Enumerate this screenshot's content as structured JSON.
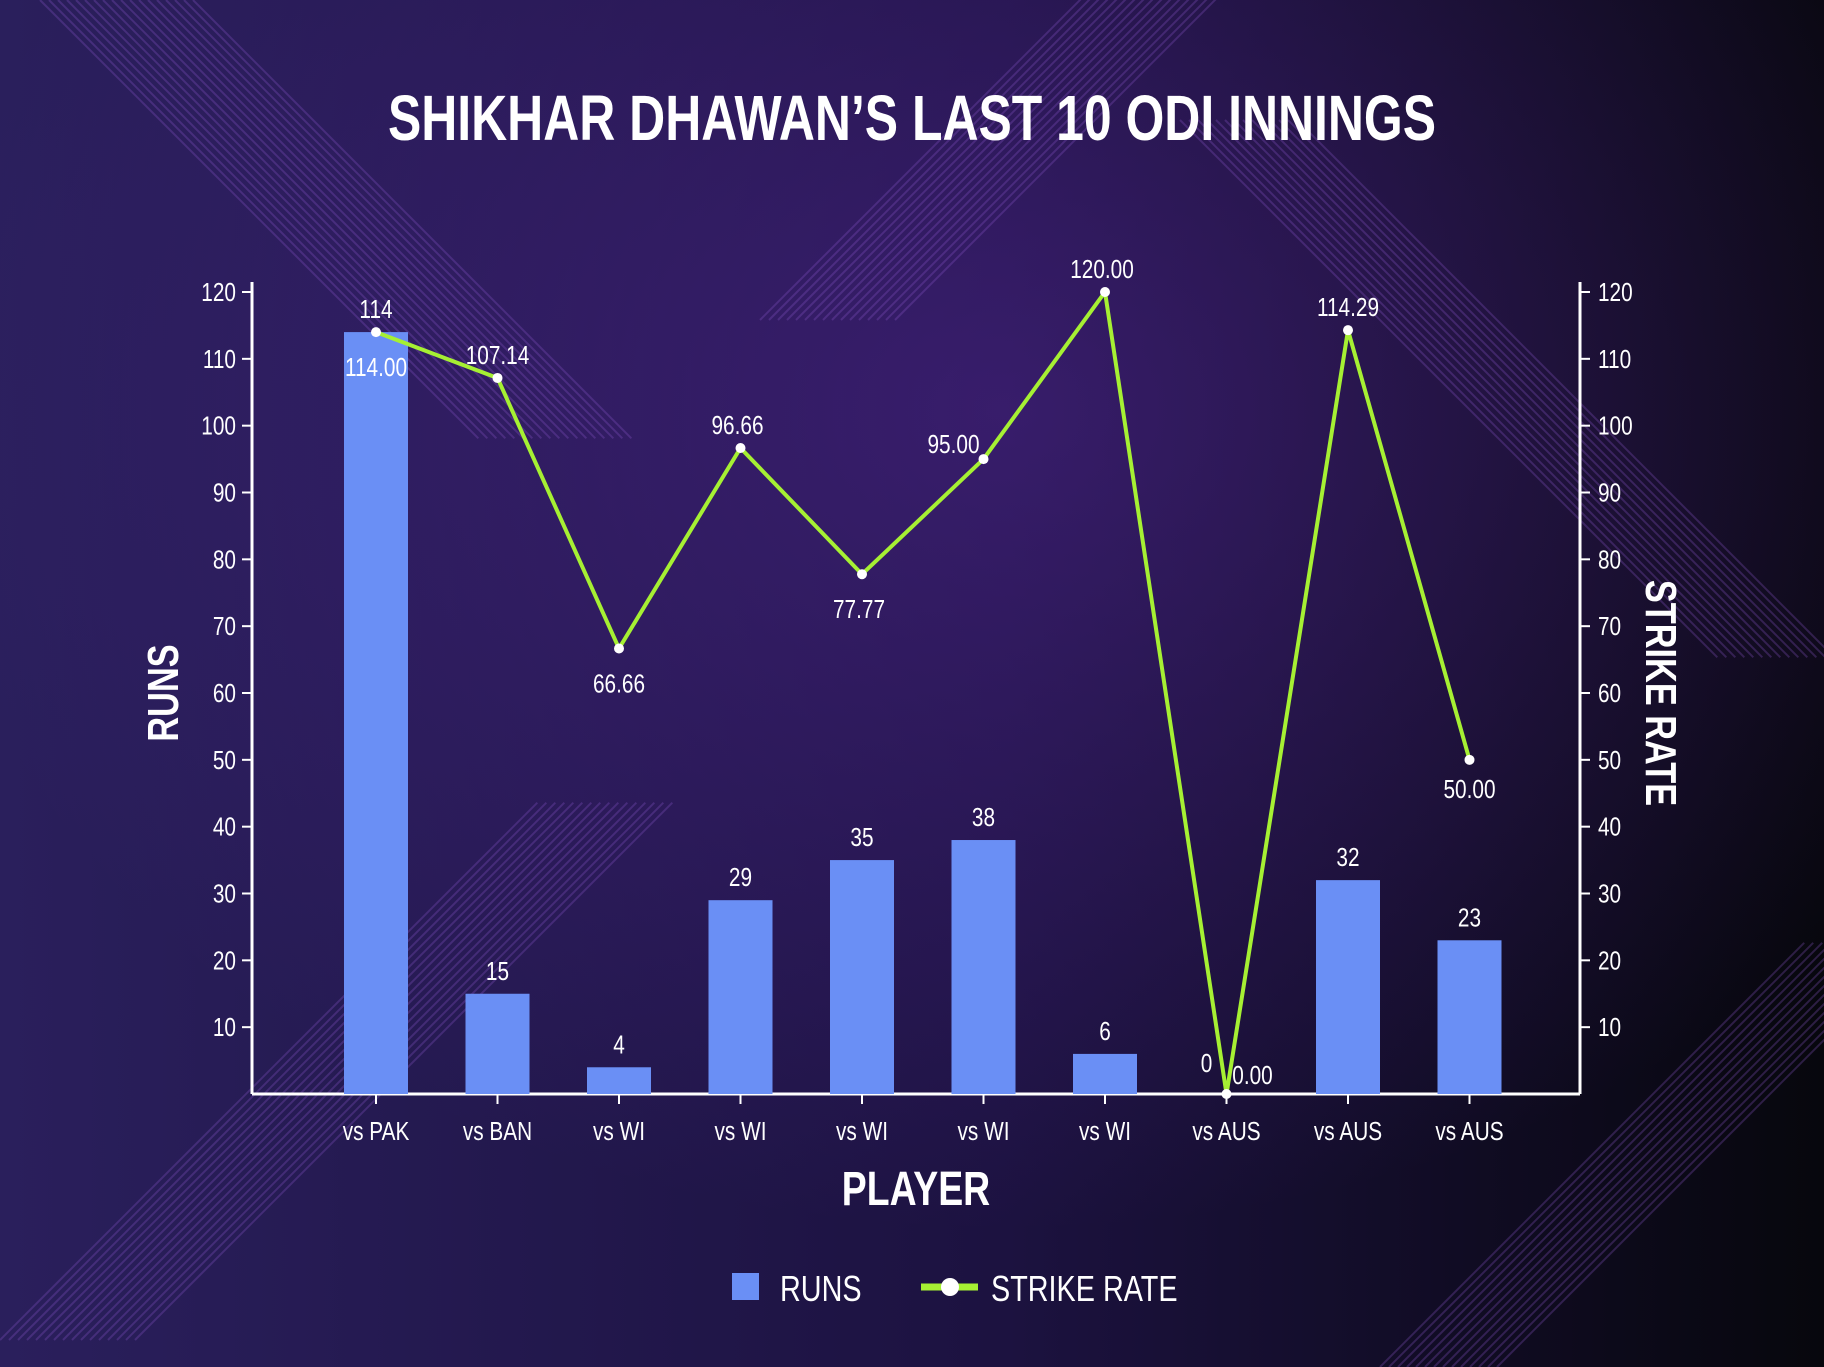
{
  "colors": {
    "background_left": "#2a1f5c",
    "background_right": "#07070d",
    "bar": "#6a8ff5",
    "line": "#a6f033",
    "point": "#ffffff",
    "text": "#ffffff",
    "stripes": "#8e5ad0"
  },
  "legend": {
    "runs_label": "RUNS",
    "strike_rate_label": "STRIKE RATE"
  },
  "chart_data": {
    "type": "bar",
    "title": "SHIKHAR DHAWAN’S LAST 10 ODI INNINGS",
    "xlabel": "PLAYER",
    "ylabel": "RUNS",
    "y2label": "STRIKE RATE",
    "categories": [
      "vs PAK",
      "vs BAN",
      "vs WI",
      "vs WI",
      "vs WI",
      "vs WI",
      "vs WI",
      "vs AUS",
      "vs AUS",
      "vs AUS"
    ],
    "ylim": [
      0,
      120
    ],
    "y2lim": [
      0,
      120
    ],
    "yticks": [
      10,
      20,
      30,
      40,
      50,
      60,
      70,
      80,
      90,
      100,
      110,
      120
    ],
    "y2ticks": [
      10,
      20,
      30,
      40,
      50,
      60,
      70,
      80,
      90,
      100,
      110,
      120
    ],
    "legend_position": "bottom",
    "grid": false,
    "series": [
      {
        "name": "RUNS",
        "type": "bar",
        "axis": "left",
        "values": [
          114,
          15,
          4,
          29,
          35,
          38,
          6,
          0,
          32,
          23
        ],
        "labels": [
          "114",
          "15",
          "4",
          "29",
          "35",
          "38",
          "6",
          "0",
          "32",
          "23"
        ]
      },
      {
        "name": "STRIKE RATE",
        "type": "line",
        "axis": "right",
        "values": [
          114.0,
          107.14,
          66.66,
          96.66,
          77.77,
          95.0,
          120.0,
          0.0,
          114.29,
          50.0
        ],
        "labels": [
          "114.00",
          "107.14",
          "66.66",
          "96.66",
          "77.77",
          "95.00",
          "120.00",
          "0.00",
          "114.29",
          "50.00"
        ]
      }
    ]
  }
}
